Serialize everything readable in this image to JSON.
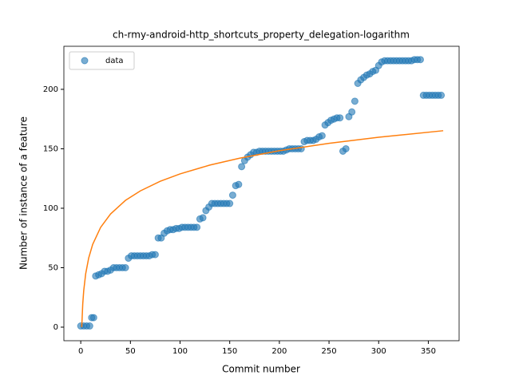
{
  "chart_data": {
    "type": "scatter",
    "title": "ch-rmy-android-http_shortcuts_property_delegation-logarithm",
    "x_label": "Commit number",
    "y_label": "Number of instance of a feature",
    "xlim": [
      -17,
      381
    ],
    "ylim": [
      -11.4,
      236.2
    ],
    "xticks": [
      0,
      50,
      100,
      150,
      200,
      250,
      300,
      350
    ],
    "yticks": [
      0,
      50,
      100,
      150,
      200
    ],
    "legend": "upper left",
    "series": [
      {
        "name": "data",
        "kind": "scatter",
        "color": "#1f77b4",
        "x": [
          0,
          3,
          6,
          9,
          11,
          13,
          15,
          18,
          21,
          24,
          27,
          30,
          33,
          36,
          39,
          42,
          45,
          48,
          51,
          54,
          57,
          60,
          63,
          66,
          69,
          72,
          75,
          78,
          81,
          84,
          87,
          90,
          93,
          96,
          99,
          102,
          105,
          108,
          111,
          114,
          117,
          120,
          123,
          126,
          129,
          132,
          135,
          138,
          141,
          144,
          147,
          150,
          153,
          156,
          159,
          162,
          165,
          168,
          171,
          174,
          177,
          180,
          183,
          186,
          189,
          192,
          195,
          198,
          201,
          204,
          207,
          210,
          213,
          216,
          219,
          222,
          225,
          228,
          231,
          234,
          237,
          240,
          243,
          246,
          249,
          252,
          255,
          258,
          261,
          264,
          267,
          270,
          273,
          276,
          279,
          282,
          285,
          288,
          291,
          294,
          297,
          300,
          303,
          306,
          309,
          312,
          315,
          318,
          321,
          324,
          327,
          330,
          333,
          336,
          339,
          342,
          345,
          348,
          351,
          354,
          357,
          360,
          363
        ],
        "values": [
          1,
          1,
          1,
          1,
          8,
          8,
          43,
          44,
          45,
          47,
          47,
          48,
          50,
          50,
          50,
          50,
          50,
          58,
          60,
          60,
          60,
          60,
          60,
          60,
          60,
          61,
          61,
          75,
          75,
          79,
          81,
          82,
          82,
          83,
          83,
          84,
          84,
          84,
          84,
          84,
          84,
          91,
          92,
          98,
          101,
          104,
          104,
          104,
          104,
          104,
          104,
          104,
          111,
          119,
          120,
          135,
          140,
          143,
          145,
          147,
          147,
          148,
          148,
          148,
          148,
          148,
          148,
          148,
          148,
          148,
          149,
          150,
          150,
          150,
          150,
          150,
          156,
          157,
          157,
          157,
          158,
          160,
          161,
          170,
          172,
          174,
          175,
          176,
          176,
          148,
          150,
          177,
          181,
          190,
          205,
          208,
          210,
          212,
          213,
          215,
          216,
          220,
          223,
          224,
          224,
          224,
          224,
          224,
          224,
          224,
          224,
          224,
          224,
          225,
          225,
          225,
          195,
          195,
          195,
          195,
          195,
          195,
          195
        ]
      },
      {
        "kind": "line",
        "color": "#ff7f0e",
        "x": [
          1,
          2,
          3,
          5,
          8,
          12,
          20,
          30,
          45,
          60,
          80,
          100,
          130,
          160,
          200,
          250,
          300,
          365
        ],
        "values": [
          0,
          19.4,
          30.8,
          45.1,
          58.2,
          69.6,
          83.9,
          95.2,
          106.6,
          114.6,
          122.7,
          128.9,
          136.3,
          142.1,
          148.4,
          154.6,
          159.7,
          165.2
        ]
      }
    ]
  }
}
